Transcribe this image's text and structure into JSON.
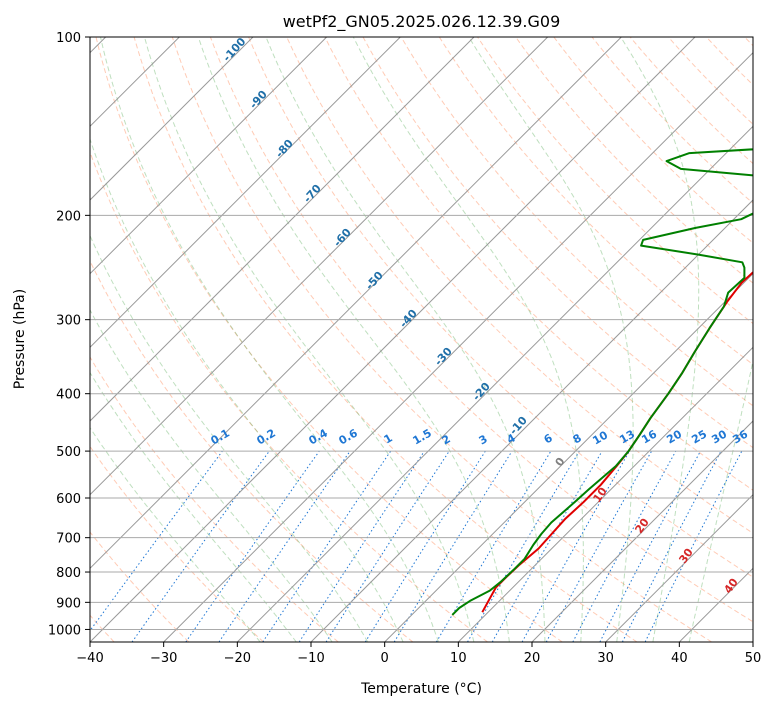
{
  "chart_data": {
    "type": "line",
    "subtype": "skew-T log-P diagram",
    "title": "wetPf2_GN05.2025.026.12.39.G09",
    "xlabel": "Temperature (°C)",
    "ylabel": "Pressure (hPa)",
    "xlim": [
      -40,
      50
    ],
    "ylim": [
      1050,
      100
    ],
    "y_scale": "log",
    "grid": true,
    "x_ticks": [
      -40,
      -30,
      -20,
      -10,
      0,
      10,
      20,
      30,
      40,
      50
    ],
    "y_ticks": [
      100,
      200,
      300,
      400,
      500,
      600,
      700,
      800,
      900,
      1000
    ],
    "series": [
      {
        "color": "#e00000",
        "points": [
          [
            9.2,
            935
          ],
          [
            8.6,
            900
          ],
          [
            7.7,
            850
          ],
          [
            7.7,
            815
          ],
          [
            7.8,
            780
          ],
          [
            8.2,
            730
          ],
          [
            8.0,
            690
          ],
          [
            7.8,
            650
          ],
          [
            8.0,
            610
          ],
          [
            8.0,
            570
          ],
          [
            7.6,
            530
          ],
          [
            7.2,
            500
          ],
          [
            6.5,
            470
          ],
          [
            5.7,
            440
          ],
          [
            4.8,
            400
          ],
          [
            3.9,
            370
          ],
          [
            2.7,
            340
          ],
          [
            1.5,
            310
          ],
          [
            0.3,
            280
          ],
          [
            -0.3,
            260
          ],
          [
            -0.2,
            250
          ],
          [
            1.2,
            240
          ],
          [
            4.5,
            230
          ],
          [
            9.0,
            215
          ],
          [
            12.0,
            200
          ],
          [
            15.0,
            188
          ],
          [
            19.0,
            175
          ],
          [
            23.0,
            162
          ],
          [
            25.5,
            155
          ],
          [
            27.0,
            145
          ],
          [
            27.5,
            135
          ],
          [
            28.0,
            125
          ],
          [
            30.0,
            115
          ],
          [
            32.0,
            105
          ],
          [
            33.5,
            100
          ]
        ]
      },
      {
        "color": "#008000",
        "points": [
          [
            5.5,
            945
          ],
          [
            5.5,
            920
          ],
          [
            6.0,
            895
          ],
          [
            7.3,
            860
          ],
          [
            7.6,
            830
          ],
          [
            7.7,
            790
          ],
          [
            7.7,
            760
          ],
          [
            7.0,
            720
          ],
          [
            6.6,
            690
          ],
          [
            6.4,
            660
          ],
          [
            6.8,
            610
          ],
          [
            7.0,
            580
          ],
          [
            7.5,
            530
          ],
          [
            7.2,
            500
          ],
          [
            6.5,
            470
          ],
          [
            5.7,
            440
          ],
          [
            4.8,
            400
          ],
          [
            3.9,
            370
          ],
          [
            2.7,
            340
          ],
          [
            1.5,
            310
          ],
          [
            0.5,
            285
          ],
          [
            -0.8,
            270
          ],
          [
            -0.6,
            255
          ],
          [
            -2.0,
            245
          ],
          [
            -3.0,
            240
          ],
          [
            -10.0,
            233
          ],
          [
            -19.0,
            225
          ],
          [
            -19.5,
            220
          ],
          [
            -14.0,
            210
          ],
          [
            -9.0,
            203
          ],
          [
            -7.5,
            195
          ],
          [
            -6.0,
            185
          ],
          [
            -5.8,
            178
          ],
          [
            -9.0,
            173
          ],
          [
            -24.0,
            167
          ],
          [
            -27.0,
            162
          ],
          [
            -25.0,
            157
          ],
          [
            -7.0,
            152
          ],
          [
            -4.0,
            147
          ],
          [
            -4.5,
            140
          ],
          [
            -2.0,
            133
          ],
          [
            0.0,
            128
          ],
          [
            5.0,
            120
          ],
          [
            8.0,
            110
          ],
          [
            10.0,
            100
          ]
        ]
      }
    ],
    "annotations": {
      "dry_adiabat_labels": [
        "-100",
        "-90",
        "-80",
        "-70",
        "-60",
        "-50",
        "-40",
        "-30",
        "-20",
        "-10"
      ],
      "mixing_ratio_labels": [
        "0.1",
        "0.2",
        "0.4",
        "0.6",
        "1",
        "1.5",
        "2",
        "3",
        "4",
        "6",
        "8",
        "10",
        "13",
        "16",
        "20",
        "25",
        "30",
        "36"
      ],
      "moist_adiabat_labels": [
        "0",
        "10",
        "20",
        "30",
        "40"
      ]
    }
  }
}
